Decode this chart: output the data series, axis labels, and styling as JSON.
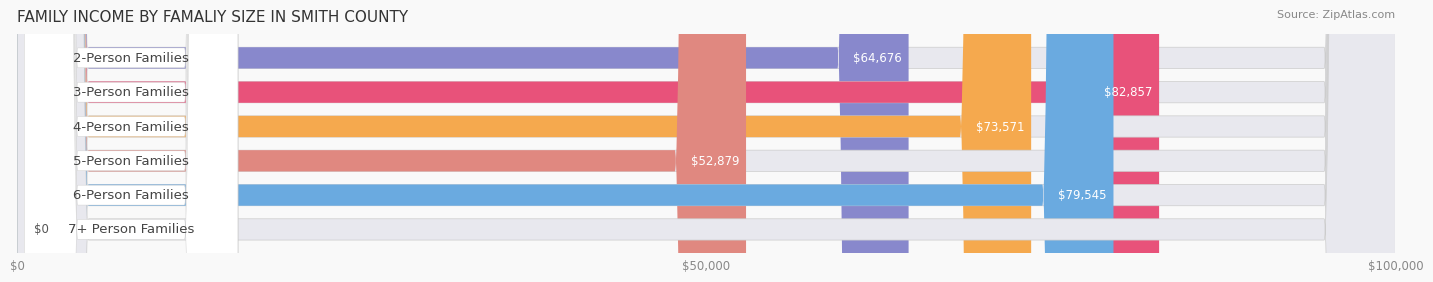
{
  "title": "FAMILY INCOME BY FAMALIY SIZE IN SMITH COUNTY",
  "source": "Source: ZipAtlas.com",
  "categories": [
    "2-Person Families",
    "3-Person Families",
    "4-Person Families",
    "5-Person Families",
    "6-Person Families",
    "7+ Person Families"
  ],
  "values": [
    64676,
    82857,
    73571,
    52879,
    79545,
    0
  ],
  "bar_colors": [
    "#8888cc",
    "#e8527a",
    "#f5a94e",
    "#e08880",
    "#6aaae0",
    "#c8b0d8"
  ],
  "track_color": "#e8e8ee",
  "xlim": [
    0,
    100000
  ],
  "xtick_labels": [
    "$0",
    "$50,000",
    "$100,000"
  ],
  "xtick_values": [
    0,
    50000,
    100000
  ],
  "bar_height": 0.62,
  "label_fontsize": 9.5,
  "value_fontsize": 8.5,
  "title_fontsize": 11,
  "source_fontsize": 8,
  "background_color": "#f9f9f9"
}
